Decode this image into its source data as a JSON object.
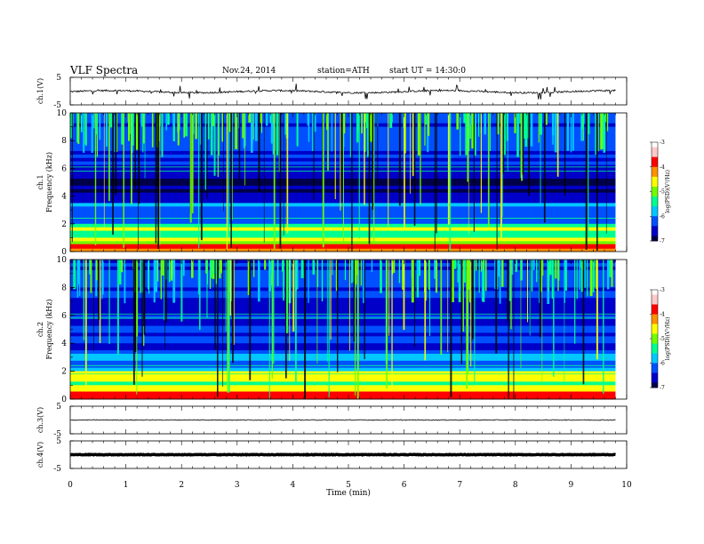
{
  "header": {
    "title": "VLF  Spectra",
    "date": "Nov.24, 2014",
    "station": "station=ATH",
    "start": "start  UT  =   14:30:0"
  },
  "x_axis": {
    "label": "Time  (min)",
    "ticks": [
      "0",
      "1",
      "2",
      "3",
      "4",
      "5",
      "6",
      "7",
      "8",
      "9",
      "10"
    ]
  },
  "colors": {
    "background": "#ffffff",
    "axis": "#000000",
    "colormap": [
      "#000048",
      "#0000c8",
      "#0050ff",
      "#00c8ff",
      "#00ff90",
      "#70ff00",
      "#ffff00",
      "#ff9000",
      "#ff0000",
      "#ffc8c8",
      "#ffffff"
    ]
  },
  "chart_data": [
    {
      "type": "line",
      "ylabel": "ch.1(V)",
      "ylim": [
        -5,
        5
      ],
      "yticks": [
        "5",
        "-5"
      ],
      "x_range_min": [
        0,
        9.8
      ],
      "series": [
        {
          "mean": -0.2,
          "spread": 0.6,
          "noise": "dense spikes"
        }
      ]
    },
    {
      "type": "heatmap",
      "ylabel_top": "ch.1",
      "ylabel": "Frequency  (kHz)",
      "ylim_khz": [
        0,
        10
      ],
      "yticks": [
        "0",
        "2",
        "4",
        "6",
        "8",
        "10"
      ],
      "x_range_min": [
        0,
        9.8
      ],
      "colorbar": {
        "label": "log(PSD)(V²/Hz)",
        "range": [
          -7,
          -3
        ],
        "ticks": [
          "-3",
          "-4",
          "-5",
          "-6",
          "-7"
        ]
      }
    },
    {
      "type": "heatmap",
      "ylabel_top": "ch.2",
      "ylabel": "Frequency  (kHz)",
      "ylim_khz": [
        0,
        10
      ],
      "yticks": [
        "0",
        "2",
        "4",
        "6",
        "8",
        "10"
      ],
      "x_range_min": [
        0,
        9.8
      ],
      "colorbar": {
        "label": "log(PSD)(V²/Hz)",
        "range": [
          -7,
          -3
        ],
        "ticks": [
          "-3",
          "-4",
          "-5",
          "-6",
          "-7"
        ]
      }
    },
    {
      "type": "line",
      "ylabel": "ch.3(V)",
      "ylim": [
        -5,
        5
      ],
      "yticks": [
        "5",
        "-5"
      ],
      "x_range_min": [
        0,
        9.8
      ],
      "series": [
        {
          "mean": 0.0,
          "spread": 0.3,
          "noise": "fine"
        }
      ]
    },
    {
      "type": "line",
      "ylabel": "ch.4(V)",
      "ylim": [
        -5,
        5
      ],
      "yticks": [
        "5",
        "-5"
      ],
      "x_range_min": [
        0,
        9.8
      ],
      "series": [
        {
          "mean": 0.0,
          "spread": 0.2,
          "noise": "thick flat"
        }
      ]
    }
  ]
}
